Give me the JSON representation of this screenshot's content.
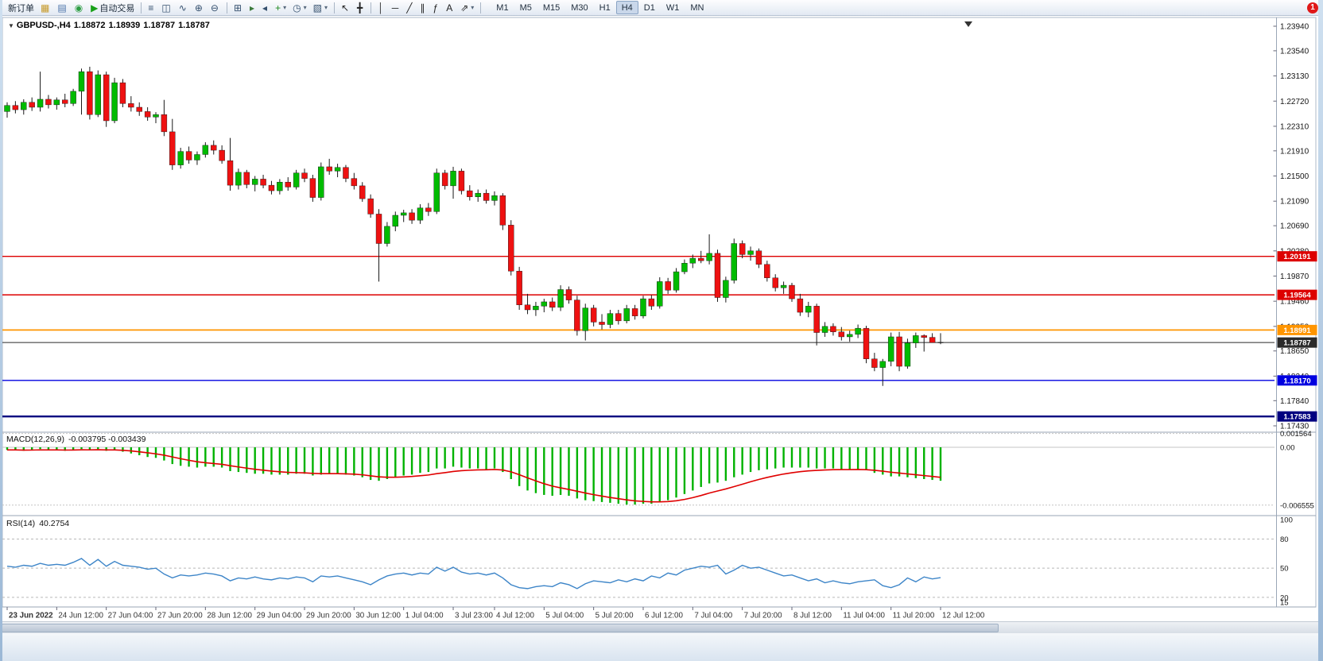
{
  "toolbar": {
    "buttons": [
      {
        "name": "new-order-button",
        "label": "新订单"
      },
      {
        "name": "chart-window-button",
        "glyph": "▦",
        "color": "#c79a2a"
      },
      {
        "name": "profiles-button",
        "glyph": "▤",
        "color": "#4a72a8"
      },
      {
        "name": "market-watch-button",
        "glyph": "◉",
        "color": "#2f9e44"
      },
      {
        "name": "auto-trading-button",
        "glyph": "▶",
        "color": "#18a018",
        "label": "自动交易"
      },
      {
        "type": "sep"
      },
      {
        "name": "bar-chart-mode-button",
        "glyph": "≡",
        "color": "#35506e"
      },
      {
        "name": "candlestick-mode-button",
        "glyph": "◫",
        "color": "#35506e"
      },
      {
        "name": "line-chart-mode-button",
        "glyph": "∿",
        "color": "#35506e"
      },
      {
        "name": "zoom-in-button",
        "glyph": "⊕",
        "color": "#35506e"
      },
      {
        "name": "zoom-out-button",
        "glyph": "⊖",
        "color": "#35506e"
      },
      {
        "type": "sep"
      },
      {
        "name": "tile-windows-button",
        "glyph": "⊞",
        "color": "#35506e"
      },
      {
        "name": "auto-scroll-button",
        "glyph": "▸",
        "color": "#3b7a3b"
      },
      {
        "name": "chart-shift-button",
        "glyph": "◂",
        "color": "#35506e"
      },
      {
        "name": "indicators-button",
        "glyph": "+",
        "color": "#1f8a1f",
        "dropdown": true
      },
      {
        "name": "periods-button",
        "glyph": "◷",
        "color": "#35506e",
        "dropdown": true
      },
      {
        "name": "templates-button",
        "glyph": "▧",
        "color": "#35506e",
        "dropdown": true
      },
      {
        "type": "sep"
      },
      {
        "name": "cursor-button",
        "glyph": "↖",
        "color": "#222222"
      },
      {
        "name": "crosshair-button",
        "glyph": "╋",
        "color": "#222222"
      },
      {
        "type": "sep"
      },
      {
        "name": "vertical-line-button",
        "glyph": "│",
        "color": "#222222"
      },
      {
        "name": "horizontal-line-button",
        "glyph": "─",
        "color": "#222222"
      },
      {
        "name": "trendline-button",
        "glyph": "╱",
        "color": "#222222"
      },
      {
        "name": "channel-button",
        "glyph": "∥",
        "color": "#222222"
      },
      {
        "name": "fibonacci-button",
        "glyph": "ƒ",
        "color": "#222222"
      },
      {
        "name": "text-label-button",
        "glyph": "A",
        "color": "#222222"
      },
      {
        "name": "arrows-button",
        "glyph": "⇗",
        "color": "#222222",
        "dropdown": true
      },
      {
        "type": "sep"
      }
    ],
    "timeframe_buttons": [
      "M1",
      "M5",
      "M15",
      "M30",
      "H1",
      "H4",
      "D1",
      "W1",
      "MN"
    ],
    "active_timeframe": "H4",
    "notification_badge": "1"
  },
  "chart": {
    "dropdown_icon": "▼",
    "symbol": "GBPUSD-,H4",
    "ohlc": {
      "open": "1.18872",
      "high": "1.18939",
      "low": "1.18787",
      "close": "1.18787"
    },
    "price_max": 1.2394,
    "price_min": 1.1743,
    "up_color": "#00BB00",
    "down_color": "#EE1111",
    "wick_color": "#1a1a1a",
    "price_axis_labels": [
      "1.23940",
      "1.23540",
      "1.23130",
      "1.22720",
      "1.22310",
      "1.21910",
      "1.21500",
      "1.21090",
      "1.20690",
      "1.20280",
      "1.19870",
      "1.19460",
      "1.19050",
      "1.18650",
      "1.18240",
      "1.17840",
      "1.17430"
    ],
    "hlines": [
      {
        "price": 1.20191,
        "label": "1.20191",
        "color": "#DD0000",
        "width": 1.4
      },
      {
        "price": 1.19564,
        "label": "1.19564",
        "color": "#DD0000",
        "width": 1.4
      },
      {
        "price": 1.18991,
        "label": "1.18991",
        "color": "#FF9500",
        "width": 1.8
      },
      {
        "price": 1.18787,
        "label": "1.18787",
        "color": "#2a2a2a",
        "width": 1.0
      },
      {
        "price": 1.1817,
        "label": "1.18170",
        "color": "#0000E0",
        "width": 1.4
      },
      {
        "price": 1.17583,
        "label": "1.17583",
        "color": "#000080",
        "width": 2.4
      }
    ],
    "candles": [
      [
        1.2255,
        1.227,
        1.2245,
        1.2265
      ],
      [
        1.2265,
        1.2272,
        1.2252,
        1.2258
      ],
      [
        1.2258,
        1.2275,
        1.225,
        1.227
      ],
      [
        1.227,
        1.2278,
        1.2256,
        1.2262
      ],
      [
        1.2262,
        1.232,
        1.2255,
        1.2275
      ],
      [
        1.2275,
        1.2282,
        1.226,
        1.2266
      ],
      [
        1.2266,
        1.2278,
        1.2258,
        1.2274
      ],
      [
        1.2274,
        1.2284,
        1.2262,
        1.2268
      ],
      [
        1.2268,
        1.2292,
        1.2264,
        1.2288
      ],
      [
        1.2288,
        1.2325,
        1.225,
        1.232
      ],
      [
        1.232,
        1.2328,
        1.2242,
        1.225
      ],
      [
        1.225,
        1.2322,
        1.2246,
        1.2315
      ],
      [
        1.2315,
        1.232,
        1.223,
        1.224
      ],
      [
        1.224,
        1.231,
        1.2236,
        1.2302
      ],
      [
        1.2302,
        1.2308,
        1.2262,
        1.2268
      ],
      [
        1.2268,
        1.228,
        1.2255,
        1.2262
      ],
      [
        1.2262,
        1.227,
        1.2248,
        1.2255
      ],
      [
        1.2255,
        1.2262,
        1.224,
        1.2246
      ],
      [
        1.2246,
        1.2254,
        1.2236,
        1.225
      ],
      [
        1.225,
        1.2274,
        1.2215,
        1.2222
      ],
      [
        1.2222,
        1.2243,
        1.216,
        1.2168
      ],
      [
        1.2168,
        1.2196,
        1.2162,
        1.219
      ],
      [
        1.219,
        1.2198,
        1.217,
        1.2176
      ],
      [
        1.2176,
        1.219,
        1.2168,
        1.2185
      ],
      [
        1.2185,
        1.2205,
        1.218,
        1.22
      ],
      [
        1.22,
        1.2208,
        1.2185,
        1.2192
      ],
      [
        1.2192,
        1.22,
        1.217,
        1.2175
      ],
      [
        1.2175,
        1.2212,
        1.2126,
        1.2135
      ],
      [
        1.2135,
        1.2162,
        1.2128,
        1.2156
      ],
      [
        1.2156,
        1.216,
        1.213,
        1.2136
      ],
      [
        1.2136,
        1.215,
        1.2125,
        1.2145
      ],
      [
        1.2145,
        1.2152,
        1.213,
        1.2135
      ],
      [
        1.2135,
        1.2142,
        1.212,
        1.2126
      ],
      [
        1.2126,
        1.2145,
        1.212,
        1.214
      ],
      [
        1.214,
        1.2148,
        1.2126,
        1.2132
      ],
      [
        1.2132,
        1.216,
        1.2128,
        1.2155
      ],
      [
        1.2155,
        1.2162,
        1.214,
        1.2146
      ],
      [
        1.2146,
        1.2152,
        1.2108,
        1.2115
      ],
      [
        1.2115,
        1.2172,
        1.211,
        1.2165
      ],
      [
        1.2165,
        1.2178,
        1.2152,
        1.2158
      ],
      [
        1.2158,
        1.217,
        1.2148,
        1.2164
      ],
      [
        1.2164,
        1.2168,
        1.214,
        1.2146
      ],
      [
        1.2146,
        1.2155,
        1.2128,
        1.2134
      ],
      [
        1.2134,
        1.214,
        1.2108,
        1.2113
      ],
      [
        1.2113,
        1.212,
        1.2082,
        1.2088
      ],
      [
        1.2088,
        1.2096,
        1.1978,
        1.204
      ],
      [
        1.204,
        1.2075,
        1.2035,
        1.2068
      ],
      [
        1.2068,
        1.2092,
        1.206,
        1.2086
      ],
      [
        1.2086,
        1.2095,
        1.2075,
        1.209
      ],
      [
        1.209,
        1.2096,
        1.2072,
        1.2078
      ],
      [
        1.2078,
        1.2104,
        1.2072,
        1.2098
      ],
      [
        1.2098,
        1.2106,
        1.2085,
        1.2092
      ],
      [
        1.2092,
        1.2162,
        1.2088,
        1.2155
      ],
      [
        1.2155,
        1.216,
        1.2128,
        1.2134
      ],
      [
        1.2134,
        1.2165,
        1.2113,
        1.2158
      ],
      [
        1.2158,
        1.2162,
        1.212,
        1.2126
      ],
      [
        1.2126,
        1.2135,
        1.211,
        1.2116
      ],
      [
        1.2116,
        1.2128,
        1.2108,
        1.2122
      ],
      [
        1.2122,
        1.2128,
        1.2105,
        1.211
      ],
      [
        1.211,
        1.2125,
        1.2102,
        1.2118
      ],
      [
        1.2118,
        1.2122,
        1.2062,
        1.207
      ],
      [
        1.207,
        1.2078,
        1.1988,
        1.1995
      ],
      [
        1.1995,
        1.2002,
        1.1932,
        1.194
      ],
      [
        1.194,
        1.1958,
        1.1925,
        1.1932
      ],
      [
        1.1932,
        1.1945,
        1.1922,
        1.1938
      ],
      [
        1.1938,
        1.195,
        1.1928,
        1.1945
      ],
      [
        1.1945,
        1.1952,
        1.193,
        1.1936
      ],
      [
        1.1936,
        1.1972,
        1.193,
        1.1965
      ],
      [
        1.1965,
        1.197,
        1.1942,
        1.1948
      ],
      [
        1.1948,
        1.1955,
        1.189,
        1.1898
      ],
      [
        1.1898,
        1.1942,
        1.1882,
        1.1935
      ],
      [
        1.1935,
        1.194,
        1.1905,
        1.1912
      ],
      [
        1.1912,
        1.1925,
        1.19,
        1.1908
      ],
      [
        1.1908,
        1.1932,
        1.1902,
        1.1926
      ],
      [
        1.1926,
        1.1932,
        1.1908,
        1.1914
      ],
      [
        1.1914,
        1.194,
        1.191,
        1.1934
      ],
      [
        1.1934,
        1.194,
        1.1916,
        1.1922
      ],
      [
        1.1922,
        1.1955,
        1.1918,
        1.195
      ],
      [
        1.195,
        1.1956,
        1.1932,
        1.1938
      ],
      [
        1.1938,
        1.1985,
        1.1934,
        1.1978
      ],
      [
        1.1978,
        1.1984,
        1.1958,
        1.1964
      ],
      [
        1.1964,
        1.2,
        1.196,
        1.1994
      ],
      [
        1.1994,
        1.2014,
        1.199,
        1.2008
      ],
      [
        1.2008,
        1.2022,
        1.2,
        1.2016
      ],
      [
        1.2016,
        1.2028,
        1.2008,
        1.2012
      ],
      [
        1.2012,
        1.2055,
        1.2006,
        1.2024
      ],
      [
        1.2024,
        1.203,
        1.1945,
        1.1952
      ],
      [
        1.1952,
        1.1986,
        1.1944,
        1.198
      ],
      [
        1.198,
        1.2048,
        1.1975,
        1.204
      ],
      [
        1.204,
        1.2045,
        1.2016,
        1.2022
      ],
      [
        1.2022,
        1.2035,
        1.2012,
        1.2028
      ],
      [
        1.2028,
        1.2032,
        1.2,
        1.2006
      ],
      [
        1.2006,
        1.2012,
        1.1978,
        1.1984
      ],
      [
        1.1984,
        1.199,
        1.1962,
        1.1968
      ],
      [
        1.1968,
        1.1978,
        1.1958,
        1.1972
      ],
      [
        1.1972,
        1.1976,
        1.1945,
        1.195
      ],
      [
        1.195,
        1.1958,
        1.1922,
        1.1928
      ],
      [
        1.1928,
        1.1945,
        1.192,
        1.1938
      ],
      [
        1.1938,
        1.1942,
        1.1874,
        1.1895
      ],
      [
        1.1895,
        1.1912,
        1.1888,
        1.1905
      ],
      [
        1.1905,
        1.191,
        1.189,
        1.1896
      ],
      [
        1.1896,
        1.1904,
        1.1882,
        1.1888
      ],
      [
        1.1888,
        1.1898,
        1.188,
        1.1892
      ],
      [
        1.1892,
        1.1908,
        1.1886,
        1.1902
      ],
      [
        1.1902,
        1.1906,
        1.1845,
        1.1852
      ],
      [
        1.1852,
        1.1862,
        1.1832,
        1.1838
      ],
      [
        1.1838,
        1.1852,
        1.1808,
        1.1848
      ],
      [
        1.1848,
        1.1895,
        1.184,
        1.1888
      ],
      [
        1.1888,
        1.1896,
        1.1832,
        1.184
      ],
      [
        1.184,
        1.1885,
        1.1836,
        1.1878
      ],
      [
        1.1878,
        1.1895,
        1.187,
        1.189
      ],
      [
        1.189,
        1.1892,
        1.1864,
        1.1887
      ],
      [
        1.18872,
        1.18939,
        1.18787,
        1.18787
      ],
      [
        1.18787,
        1.18939,
        1.1876,
        1.18787
      ]
    ],
    "shift_marker": "▼"
  },
  "indicators": {
    "macd": {
      "label": "MACD(12,26,9)",
      "values_text": "-0.003795 -0.003439",
      "histogram_color": "#00B200",
      "signal_color": "#E00000",
      "axis_labels": [
        {
          "value": 0.001564,
          "text": "0.001564"
        },
        {
          "value": 0,
          "text": "0.00"
        },
        {
          "value": -0.006555,
          "text": "-0.006555"
        }
      ],
      "histogram": [
        -0.0003,
        -0.0003,
        -0.0004,
        -0.0003,
        -0.0002,
        -0.0003,
        -0.0003,
        -0.0004,
        -0.0003,
        -0.0002,
        -0.0003,
        -0.0002,
        -0.0004,
        -0.0003,
        -0.0005,
        -0.0007,
        -0.0009,
        -0.0011,
        -0.0012,
        -0.0015,
        -0.0019,
        -0.0021,
        -0.0022,
        -0.0023,
        -0.0022,
        -0.0022,
        -0.0023,
        -0.0027,
        -0.0028,
        -0.0029,
        -0.003,
        -0.003,
        -0.0031,
        -0.0031,
        -0.0031,
        -0.003,
        -0.003,
        -0.0032,
        -0.0031,
        -0.003,
        -0.003,
        -0.0031,
        -0.0032,
        -0.0034,
        -0.0037,
        -0.0038,
        -0.0036,
        -0.0034,
        -0.0032,
        -0.0031,
        -0.0029,
        -0.0028,
        -0.0024,
        -0.0024,
        -0.0022,
        -0.0023,
        -0.0024,
        -0.0024,
        -0.0025,
        -0.0024,
        -0.0028,
        -0.0036,
        -0.0044,
        -0.0049,
        -0.0052,
        -0.0054,
        -0.0055,
        -0.0054,
        -0.0055,
        -0.0058,
        -0.006,
        -0.0061,
        -0.0062,
        -0.0063,
        -0.0064,
        -0.0065,
        -0.0065,
        -0.0064,
        -0.0064,
        -0.0062,
        -0.006,
        -0.0057,
        -0.0053,
        -0.0049,
        -0.0045,
        -0.0041,
        -0.004,
        -0.0038,
        -0.0034,
        -0.0031,
        -0.0028,
        -0.0026,
        -0.0025,
        -0.0024,
        -0.0023,
        -0.0023,
        -0.0023,
        -0.0023,
        -0.0024,
        -0.0024,
        -0.0024,
        -0.0025,
        -0.0025,
        -0.0025,
        -0.0026,
        -0.0029,
        -0.0031,
        -0.0033,
        -0.0033,
        -0.0034,
        -0.0035,
        -0.0036,
        -0.0037,
        -0.003795
      ]
    },
    "rsi": {
      "label": "RSI(14)",
      "value_text": "40.2754",
      "line_color": "#3D85C8",
      "levels": [
        {
          "value": 100,
          "text": "100",
          "line": false
        },
        {
          "value": 80,
          "text": "80",
          "line": true
        },
        {
          "value": 50,
          "text": "50",
          "line": true
        },
        {
          "value": 20,
          "text": "20",
          "line": true
        },
        {
          "value": 15,
          "text": "15",
          "line": false
        }
      ],
      "series": [
        52,
        51,
        53,
        52,
        55,
        53,
        54,
        53,
        56,
        60,
        53,
        59,
        52,
        57,
        53,
        52,
        51,
        49,
        50,
        44,
        40,
        43,
        42,
        43,
        45,
        44,
        42,
        37,
        40,
        39,
        41,
        39,
        38,
        40,
        39,
        41,
        40,
        36,
        42,
        41,
        42,
        40,
        38,
        36,
        33,
        38,
        42,
        44,
        45,
        43,
        45,
        44,
        51,
        47,
        51,
        46,
        44,
        45,
        43,
        45,
        40,
        33,
        30,
        29,
        31,
        32,
        31,
        35,
        33,
        29,
        34,
        37,
        36,
        35,
        38,
        36,
        39,
        37,
        42,
        40,
        45,
        43,
        48,
        50,
        52,
        51,
        53,
        44,
        48,
        53,
        50,
        51,
        48,
        45,
        42,
        43,
        40,
        37,
        39,
        35,
        37,
        35,
        34,
        36,
        37,
        38,
        32,
        30,
        33,
        40,
        36,
        41,
        39,
        40.2754
      ]
    }
  },
  "time_axis": [
    "23 Jun 2022",
    "24 Jun 12:00",
    "27 Jun 04:00",
    "27 Jun 20:00",
    "28 Jun 12:00",
    "29 Jun 04:00",
    "29 Jun 20:00",
    "30 Jun 12:00",
    "1 Jul 04:00",
    "3 Jul 23:00",
    "4 Jul 12:00",
    "5 Jul 04:00",
    "5 Jul 20:00",
    "6 Jul 12:00",
    "7 Jul 04:00",
    "7 Jul 20:00",
    "8 Jul 12:00",
    "11 Jul 04:00",
    "11 Jul 20:00",
    "12 Jul 12:00"
  ]
}
